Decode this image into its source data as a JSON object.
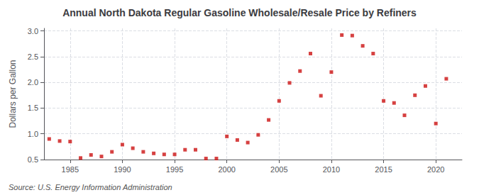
{
  "chart_data": {
    "type": "scatter",
    "title": "Annual North Dakota Regular Gasoline Wholesale/Resale Price by Refiners",
    "ylabel": "Dollars per Gallon",
    "annotations": [
      "Source: U.S. Energy Information Administration"
    ],
    "x": [
      1983,
      1984,
      1985,
      1986,
      1987,
      1988,
      1989,
      1990,
      1991,
      1992,
      1993,
      1994,
      1995,
      1996,
      1997,
      1998,
      1999,
      2000,
      2001,
      2002,
      2003,
      2004,
      2005,
      2006,
      2007,
      2008,
      2009,
      2010,
      2011,
      2012,
      2013,
      2014,
      2015,
      2016,
      2017,
      2018,
      2019,
      2020,
      2021
    ],
    "values": [
      0.9,
      0.86,
      0.85,
      0.53,
      0.59,
      0.56,
      0.65,
      0.79,
      0.72,
      0.65,
      0.62,
      0.6,
      0.6,
      0.69,
      0.69,
      0.52,
      0.52,
      0.95,
      0.88,
      0.83,
      0.98,
      1.27,
      1.64,
      1.99,
      2.22,
      2.56,
      1.74,
      2.2,
      2.92,
      2.91,
      2.71,
      2.56,
      1.64,
      1.6,
      1.36,
      1.75,
      1.93,
      1.2,
      2.07
    ],
    "color": "#cc1111",
    "marker": "square",
    "xlim": [
      1982.5,
      2022.5
    ],
    "xticks": [
      1985,
      1990,
      1995,
      2000,
      2005,
      2010,
      2015,
      2020
    ],
    "ylim": [
      0.5,
      3.05
    ],
    "yticks": [
      0.5,
      {
        "value": 1,
        "label": "1.0"
      },
      1.5,
      {
        "value": 2,
        "label": "2.0"
      },
      2.5,
      {
        "value": 3,
        "label": "3.0"
      }
    ],
    "grid": true
  }
}
